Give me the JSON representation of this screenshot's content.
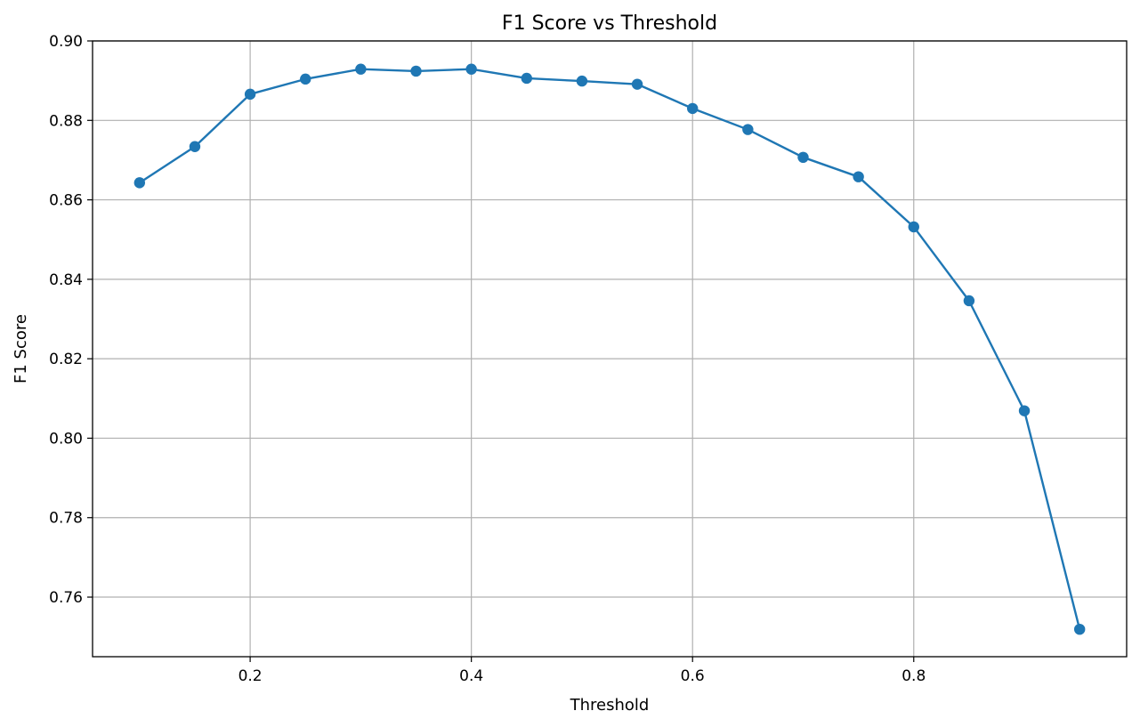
{
  "chart_data": {
    "type": "line",
    "title": "F1 Score vs Threshold",
    "xlabel": "Threshold",
    "ylabel": "F1 Score",
    "xlim": [
      0.0575,
      0.9925
    ],
    "ylim": [
      0.745,
      0.9
    ],
    "x_ticks": [
      0.2,
      0.4,
      0.6,
      0.8
    ],
    "x_tick_labels": [
      "0.2",
      "0.4",
      "0.6",
      "0.8"
    ],
    "y_ticks": [
      0.76,
      0.78,
      0.8,
      0.82,
      0.84,
      0.86,
      0.88,
      0.9
    ],
    "y_tick_labels": [
      "0.76",
      "0.78",
      "0.80",
      "0.82",
      "0.84",
      "0.86",
      "0.88",
      "0.90"
    ],
    "grid": true,
    "series": [
      {
        "color": "#1f77b4",
        "marker": "circle",
        "x": [
          0.1,
          0.15,
          0.2,
          0.25,
          0.3,
          0.35,
          0.4,
          0.45,
          0.5,
          0.55,
          0.6,
          0.65,
          0.7,
          0.75,
          0.8,
          0.85,
          0.9,
          0.95
        ],
        "y": [
          0.8643,
          0.8734,
          0.8866,
          0.8904,
          0.8929,
          0.8924,
          0.8929,
          0.8906,
          0.8899,
          0.8891,
          0.883,
          0.8777,
          0.8707,
          0.8658,
          0.8532,
          0.8346,
          0.8069,
          0.7519
        ]
      }
    ]
  }
}
